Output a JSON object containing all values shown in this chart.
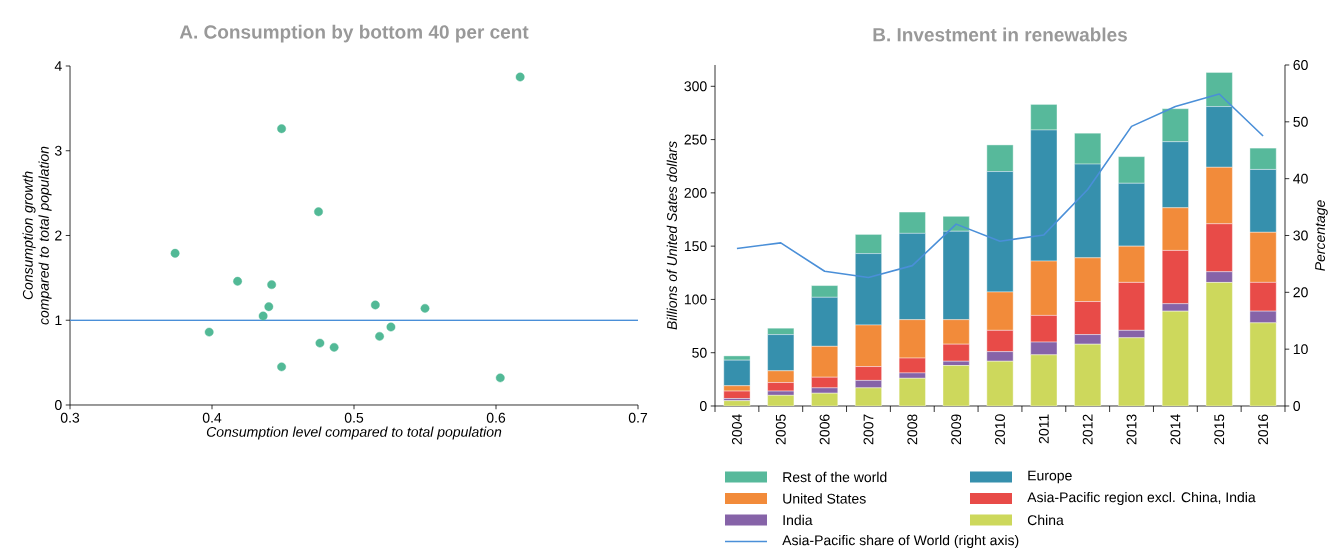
{
  "chart_data": [
    {
      "type": "scatter",
      "title": "A. Consumption by bottom 40 per cent",
      "xlabel": "Consumption level compared to total population",
      "ylabel": "Consumption growth compared to total population",
      "color": "#52b996",
      "marker": "circle",
      "x": [
        0.617,
        0.449,
        0.475,
        0.374,
        0.418,
        0.442,
        0.44,
        0.436,
        0.515,
        0.55,
        0.398,
        0.526,
        0.518,
        0.476,
        0.486,
        0.449,
        0.603
      ],
      "values": [
        3.87,
        3.26,
        2.28,
        1.79,
        1.46,
        1.42,
        1.16,
        1.05,
        1.18,
        1.14,
        0.86,
        0.92,
        0.81,
        0.73,
        0.68,
        0.45,
        0.32
      ],
      "xlim": [
        0.3,
        0.7
      ],
      "xticks": [
        0.3,
        0.4,
        0.5,
        0.6,
        0.7
      ],
      "ylim": [
        0,
        4
      ],
      "yticks": [
        0,
        1,
        2,
        3,
        4
      ],
      "ref_lines": [
        {
          "axis": "y",
          "value": 1,
          "color": "#4a8fd8"
        }
      ]
    },
    {
      "type": "bar",
      "stacked": true,
      "title": "B. Investment in renewables",
      "ylabel": "Billions of United Sates dollars",
      "y2label": "Percentage",
      "legend": "bottom",
      "categories": [
        "2004",
        "2005",
        "2006",
        "2007",
        "2008",
        "2009",
        "2010",
        "2011",
        "2012",
        "2013",
        "2014",
        "2015",
        "2016"
      ],
      "series": [
        {
          "name": "China",
          "color": "#cdd85c",
          "values": [
            5,
            10,
            12,
            17,
            26,
            38,
            42,
            48,
            58,
            64,
            89,
            116,
            78
          ]
        },
        {
          "name": "India",
          "color": "#8663a8",
          "values": [
            2,
            4,
            5,
            7,
            5,
            4,
            9,
            12,
            9,
            7,
            7,
            10,
            11
          ]
        },
        {
          "name": "Asia-Pacific region excl. China, India",
          "color": "#e84b48",
          "values": [
            7,
            8,
            10,
            13,
            14,
            16,
            20,
            25,
            31,
            45,
            50,
            45,
            27
          ]
        },
        {
          "name": "United States",
          "color": "#f28b3a",
          "values": [
            5,
            11,
            29,
            39,
            36,
            23,
            36,
            51,
            41,
            34,
            40,
            53,
            47
          ]
        },
        {
          "name": "Europe",
          "color": "#3690ad",
          "values": [
            24,
            34,
            46,
            67,
            81,
            83,
            113,
            123,
            88,
            59,
            62,
            57,
            59
          ]
        },
        {
          "name": "Rest of the world",
          "color": "#57b99b",
          "values": [
            4,
            6,
            11,
            18,
            20,
            14,
            25,
            24,
            29,
            25,
            31,
            32,
            20
          ]
        },
        {
          "name": "Asia-Pacific share of World (right axis)",
          "type": "line",
          "axis": "y2",
          "color": "#4a8fd8",
          "values": [
            27.7,
            28.7,
            23.7,
            22.6,
            24.7,
            32.0,
            29.0,
            30.1,
            38.1,
            49.2,
            52.7,
            54.9,
            47.5
          ]
        }
      ],
      "ylim": [
        0,
        320
      ],
      "yticks": [
        0,
        50,
        100,
        150,
        200,
        250,
        300
      ],
      "y2lim": [
        0,
        60
      ],
      "y2ticks": [
        0,
        10,
        20,
        30,
        40,
        50,
        60
      ]
    }
  ]
}
